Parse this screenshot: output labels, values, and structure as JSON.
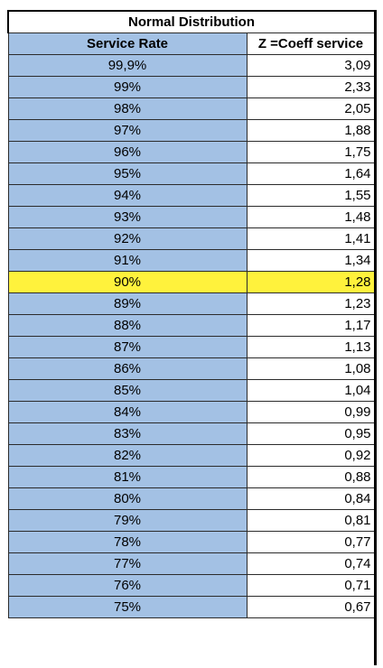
{
  "table": {
    "title": "Normal Distribution",
    "headers": {
      "service_rate": "Service Rate",
      "z": "Z =Coeff service"
    },
    "highlight_color": "#fff23c",
    "rate_column_color": "#a3c1e4",
    "rows": [
      {
        "rate": "99,9%",
        "z": "3,09",
        "highlight": false
      },
      {
        "rate": "99%",
        "z": "2,33",
        "highlight": false
      },
      {
        "rate": "98%",
        "z": "2,05",
        "highlight": false
      },
      {
        "rate": "97%",
        "z": "1,88",
        "highlight": false
      },
      {
        "rate": "96%",
        "z": "1,75",
        "highlight": false
      },
      {
        "rate": "95%",
        "z": "1,64",
        "highlight": false
      },
      {
        "rate": "94%",
        "z": "1,55",
        "highlight": false
      },
      {
        "rate": "93%",
        "z": "1,48",
        "highlight": false
      },
      {
        "rate": "92%",
        "z": "1,41",
        "highlight": false
      },
      {
        "rate": "91%",
        "z": "1,34",
        "highlight": false
      },
      {
        "rate": "90%",
        "z": "1,28",
        "highlight": true
      },
      {
        "rate": "89%",
        "z": "1,23",
        "highlight": false
      },
      {
        "rate": "88%",
        "z": "1,17",
        "highlight": false
      },
      {
        "rate": "87%",
        "z": "1,13",
        "highlight": false
      },
      {
        "rate": "86%",
        "z": "1,08",
        "highlight": false
      },
      {
        "rate": "85%",
        "z": "1,04",
        "highlight": false
      },
      {
        "rate": "84%",
        "z": "0,99",
        "highlight": false
      },
      {
        "rate": "83%",
        "z": "0,95",
        "highlight": false
      },
      {
        "rate": "82%",
        "z": "0,92",
        "highlight": false
      },
      {
        "rate": "81%",
        "z": "0,88",
        "highlight": false
      },
      {
        "rate": "80%",
        "z": "0,84",
        "highlight": false
      },
      {
        "rate": "79%",
        "z": "0,81",
        "highlight": false
      },
      {
        "rate": "78%",
        "z": "0,77",
        "highlight": false
      },
      {
        "rate": "77%",
        "z": "0,74",
        "highlight": false
      },
      {
        "rate": "76%",
        "z": "0,71",
        "highlight": false
      },
      {
        "rate": "75%",
        "z": "0,67",
        "highlight": false
      }
    ]
  }
}
